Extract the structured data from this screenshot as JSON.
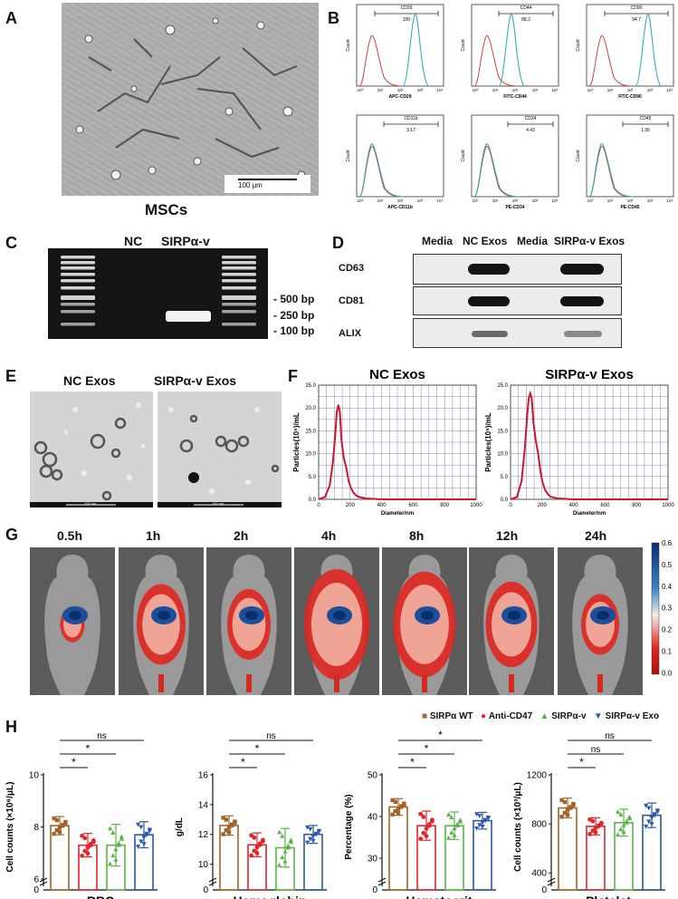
{
  "panels": {
    "A": {
      "label": "A",
      "caption": "MSCs",
      "scale_bar": "100 μm"
    },
    "B": {
      "label": "B",
      "plots": [
        {
          "marker": "CD29",
          "percent": "100",
          "axis": "APC-CD29",
          "ylabel": "Count"
        },
        {
          "marker": "CD44",
          "percent": "88.2",
          "axis": "FITC-CD44",
          "ylabel": "Count"
        },
        {
          "marker": "CD90",
          "percent": "94.7",
          "axis": "FITC-CD90",
          "ylabel": "Count"
        },
        {
          "marker": "CD11b",
          "percent": "3.17",
          "axis": "APC-CD11b",
          "ylabel": "Count"
        },
        {
          "marker": "CD34",
          "percent": "4.43",
          "axis": "PE-CD34",
          "ylabel": "Count"
        },
        {
          "marker": "CD45",
          "percent": "1.36",
          "axis": "PE-CD45",
          "ylabel": "Count"
        }
      ]
    },
    "C": {
      "label": "C",
      "lanes": [
        "NC",
        "SIRPα-v"
      ],
      "markers": [
        "- 500 bp",
        "- 250 bp",
        "- 100 bp"
      ]
    },
    "D": {
      "label": "D",
      "lanes": [
        "Media",
        "NC Exos",
        "Media",
        "SIRPα-v Exos"
      ],
      "rows": [
        "CD63",
        "CD81",
        "ALIX"
      ]
    },
    "E": {
      "label": "E",
      "titles": [
        "NC Exos",
        "SIRPα-v Exos"
      ],
      "scale_text": "100 nm"
    },
    "F": {
      "label": "F",
      "titles": [
        "NC Exos",
        "SIRPα-v Exos"
      ],
      "ylabel": "Particles(10⁵)/mL",
      "xlabel": "Diameter/nm"
    },
    "G": {
      "label": "G",
      "times": [
        "0.5h",
        "1h",
        "2h",
        "4h",
        "8h",
        "12h",
        "24h"
      ],
      "colorbar_ticks": [
        "0.6",
        "0.5",
        "0.4",
        "0.3",
        "0.2",
        "0.1",
        "0.0"
      ]
    },
    "H": {
      "label": "H",
      "legend": [
        "SIRPα WT",
        "Anti-CD47",
        "SIRPα-v",
        "SIRPα-v Exo"
      ]
    }
  },
  "colors": {
    "wt": "#a0642a",
    "anti": "#e0262b",
    "sirpv": "#58b548",
    "exo": "#2a57a6",
    "flow_red": "#c9443f",
    "flow_cyan": "#2aa7b0",
    "nta_red": "#d0142a"
  },
  "chart_data": [
    {
      "type": "line",
      "panel": "F-left",
      "title": "NC Exos",
      "xlabel": "Diameter/nm",
      "ylabel": "Particles(10⁵)/mL",
      "xlim": [
        0,
        1000
      ],
      "ylim": [
        0,
        25
      ],
      "xticks": [
        0,
        200,
        400,
        600,
        800,
        1000
      ],
      "yticks": [
        "0.0",
        "5.0",
        "10.0",
        "15.0",
        "20.0",
        "25.0"
      ],
      "x": [
        0,
        40,
        70,
        90,
        105,
        115,
        125,
        135,
        145,
        160,
        175,
        190,
        205,
        220,
        240,
        260,
        300,
        400,
        600,
        800,
        1000
      ],
      "y": [
        0,
        0.5,
        3,
        8,
        14,
        19,
        20.7,
        19,
        13,
        9,
        7,
        4,
        2.5,
        1.5,
        0.8,
        0.5,
        0.2,
        0,
        0,
        0,
        0
      ]
    },
    {
      "type": "line",
      "panel": "F-right",
      "title": "SIRPα-v Exos",
      "xlabel": "Diameter/nm",
      "ylabel": "Particles(10⁵)/mL",
      "xlim": [
        0,
        1000
      ],
      "ylim": [
        0,
        25
      ],
      "xticks": [
        0,
        200,
        400,
        600,
        800,
        1000
      ],
      "yticks": [
        "0.0",
        "5.0",
        "10.0",
        "15.0",
        "20.0",
        "25.0"
      ],
      "x": [
        0,
        40,
        70,
        90,
        105,
        115,
        125,
        135,
        145,
        160,
        175,
        190,
        205,
        220,
        240,
        260,
        300,
        400,
        600,
        800,
        1000
      ],
      "y": [
        0,
        0.5,
        4,
        11,
        18,
        22,
        23.2,
        22,
        17,
        13,
        10,
        6,
        3.5,
        2,
        1,
        0.5,
        0.2,
        0,
        0,
        0,
        0
      ]
    },
    {
      "type": "bar",
      "panel": "H-RBC",
      "title": "RBC",
      "ylabel": "Cell counts (×10⁶/μL)",
      "categories": [
        "SIRPα WT",
        "Anti-CD47",
        "SIRPα-v",
        "SIRPα-v Exo"
      ],
      "values": [
        8.05,
        7.3,
        7.3,
        7.7
      ],
      "errors": [
        0.35,
        0.45,
        0.8,
        0.5
      ],
      "ylim": [
        6,
        10
      ],
      "yticks": [
        "6",
        "8",
        "10"
      ],
      "break_label": "0",
      "significance": [
        [
          "1-2",
          "*"
        ],
        [
          "1-3",
          "*"
        ],
        [
          "1-4",
          "ns"
        ]
      ]
    },
    {
      "type": "bar",
      "panel": "H-Hemoglobin",
      "title": "Hemoglobin",
      "ylabel": "g/dL",
      "categories": [
        "SIRPα WT",
        "Anti-CD47",
        "SIRPα-v",
        "SIRPα-v Exo"
      ],
      "values": [
        12.6,
        11.3,
        11.1,
        12.0
      ],
      "errors": [
        0.65,
        0.8,
        1.3,
        0.6
      ],
      "ylim": [
        9,
        16
      ],
      "yticks": [
        "10",
        "12",
        "14",
        "16"
      ],
      "break_label": "0",
      "significance": [
        [
          "1-2",
          "*"
        ],
        [
          "1-3",
          "*"
        ],
        [
          "1-4",
          "ns"
        ]
      ]
    },
    {
      "type": "bar",
      "panel": "H-Hematocrit",
      "title": "Hematocrit",
      "ylabel": "Percentage (%)",
      "categories": [
        "SIRPα WT",
        "Anti-CD47",
        "SIRPα-v",
        "SIRPα-v Exo"
      ],
      "values": [
        42.3,
        37.8,
        37.8,
        39.0
      ],
      "errors": [
        2.0,
        3.5,
        3.3,
        2.0
      ],
      "ylim": [
        25,
        50
      ],
      "yticks": [
        "30",
        "40",
        "50"
      ],
      "break_label": "0",
      "significance": [
        [
          "1-2",
          "*"
        ],
        [
          "1-3",
          "*"
        ],
        [
          "1-4",
          "*"
        ]
      ]
    },
    {
      "type": "bar",
      "panel": "H-Platelet",
      "title": "Platelet",
      "ylabel": "Cell counts (×10³/μL)",
      "categories": [
        "SIRPα WT",
        "Anti-CD47",
        "SIRPα-v",
        "SIRPα-v Exo"
      ],
      "values": [
        930,
        780,
        810,
        870
      ],
      "errors": [
        80,
        70,
        110,
        100
      ],
      "ylim": [
        350,
        1200
      ],
      "yticks": [
        "400",
        "800",
        "1200"
      ],
      "break_label": "0",
      "significance": [
        [
          "1-2",
          "*"
        ],
        [
          "1-3",
          "ns"
        ],
        [
          "1-4",
          "ns"
        ]
      ]
    }
  ]
}
